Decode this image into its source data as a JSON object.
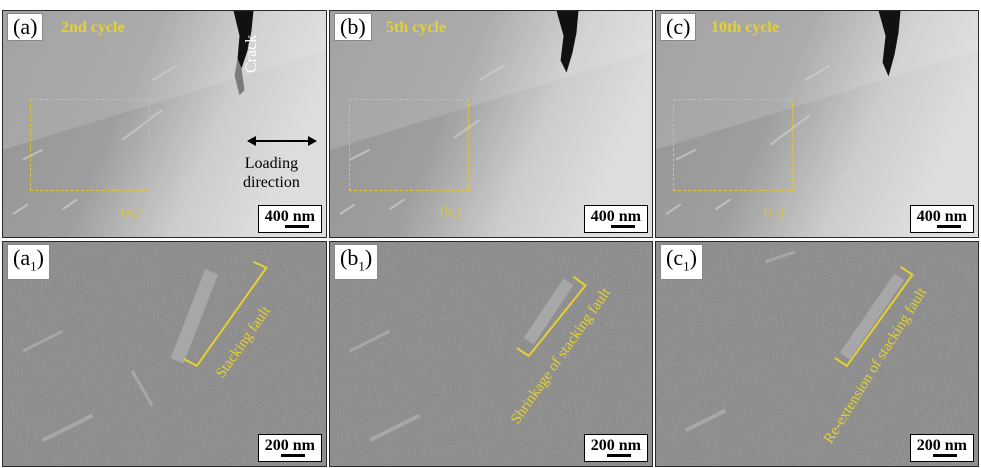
{
  "panels": {
    "a": {
      "tag": "(a",
      "tag_close": ")",
      "cycle": "2nd cycle",
      "scale": "400 nm",
      "sub_label": "(a",
      "sub_close": ")",
      "sub_idx": "1"
    },
    "b": {
      "tag": "(b",
      "tag_close": ")",
      "cycle": "5th cycle",
      "scale": "400 nm",
      "sub_label": "(b",
      "sub_close": ")",
      "sub_idx": "1"
    },
    "c": {
      "tag": "(c",
      "tag_close": ")",
      "cycle": "10th cycle",
      "scale": "400 nm",
      "sub_label": "(c",
      "sub_close": ")",
      "sub_idx": "1"
    },
    "a1": {
      "tag": "(a",
      "tag_idx": "1",
      "tag_close": ")",
      "scale": "200 nm",
      "annotation": "Stacking fault"
    },
    "b1": {
      "tag": "(b",
      "tag_idx": "1",
      "tag_close": ")",
      "scale": "200 nm",
      "annotation": "Shrinkage of stacking fault"
    },
    "c1": {
      "tag": "(c",
      "tag_idx": "1",
      "tag_close": ")",
      "scale": "200 nm",
      "annotation": "Re-extension of stacking fault"
    }
  },
  "crack_label": "Crack",
  "loading_label_1": "Loading",
  "loading_label_2": "direction",
  "colors": {
    "annotation": "#e6d22c",
    "zoom_box": "#e6c72a"
  }
}
